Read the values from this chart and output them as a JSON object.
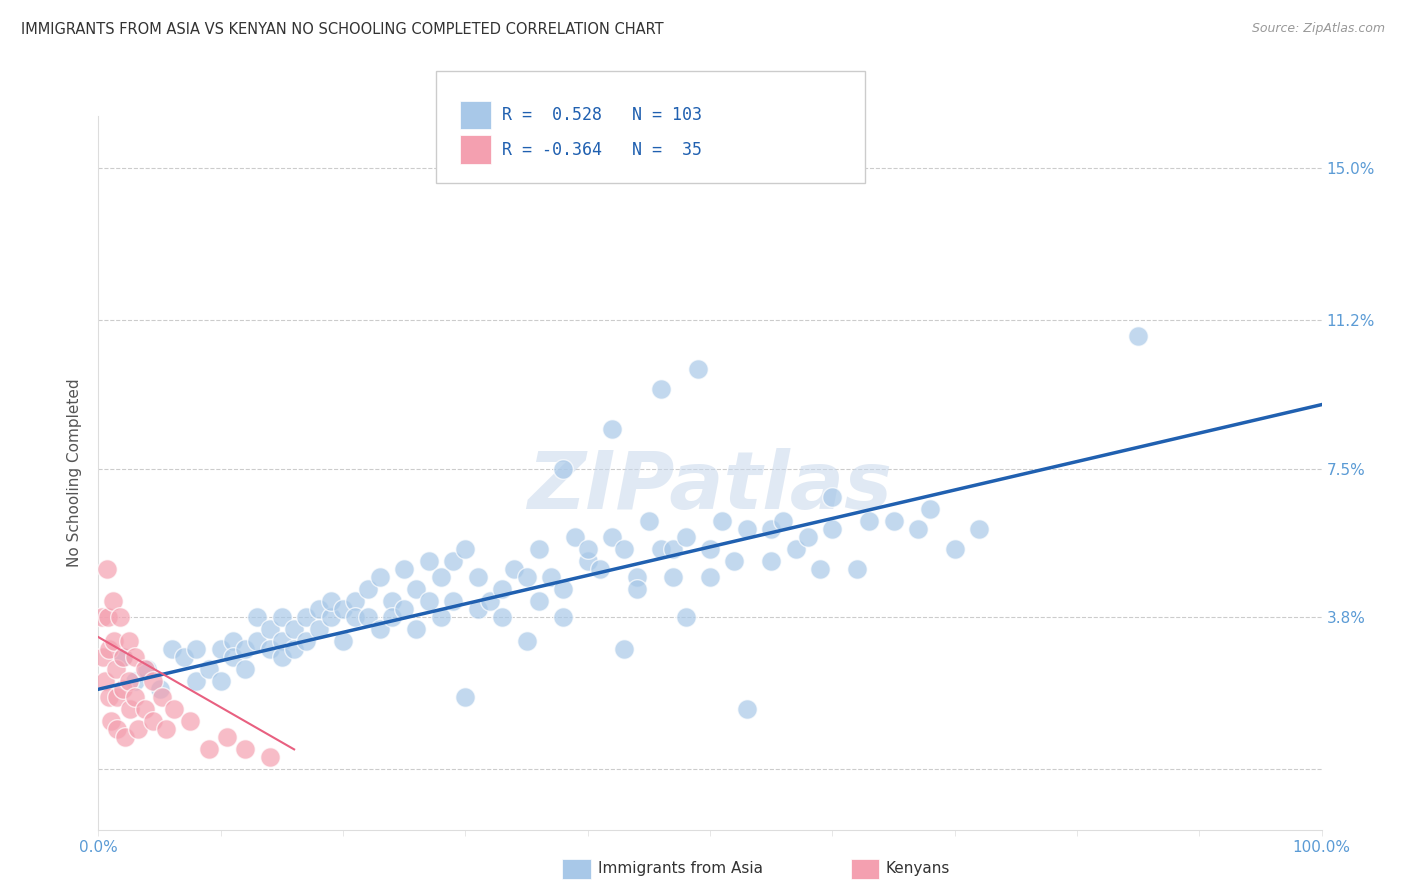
{
  "title": "IMMIGRANTS FROM ASIA VS KENYAN NO SCHOOLING COMPLETED CORRELATION CHART",
  "source": "Source: ZipAtlas.com",
  "ylabel": "No Schooling Completed",
  "xlim": [
    0.0,
    1.0
  ],
  "ylim": [
    -0.015,
    0.163
  ],
  "legend_blue_R": "0.528",
  "legend_blue_N": "103",
  "legend_pink_R": "-0.364",
  "legend_pink_N": "35",
  "blue_color": "#A8C8E8",
  "pink_color": "#F4A0B0",
  "line_blue_color": "#2060B0",
  "line_pink_color": "#E86080",
  "background_color": "#ffffff",
  "watermark": "ZIPatlas",
  "blue_scatter": [
    [
      0.02,
      0.028
    ],
    [
      0.03,
      0.022
    ],
    [
      0.04,
      0.025
    ],
    [
      0.05,
      0.02
    ],
    [
      0.06,
      0.03
    ],
    [
      0.07,
      0.028
    ],
    [
      0.08,
      0.03
    ],
    [
      0.08,
      0.022
    ],
    [
      0.09,
      0.025
    ],
    [
      0.1,
      0.03
    ],
    [
      0.1,
      0.022
    ],
    [
      0.11,
      0.032
    ],
    [
      0.11,
      0.028
    ],
    [
      0.12,
      0.03
    ],
    [
      0.12,
      0.025
    ],
    [
      0.13,
      0.032
    ],
    [
      0.13,
      0.038
    ],
    [
      0.14,
      0.03
    ],
    [
      0.14,
      0.035
    ],
    [
      0.15,
      0.038
    ],
    [
      0.15,
      0.032
    ],
    [
      0.15,
      0.028
    ],
    [
      0.16,
      0.035
    ],
    [
      0.16,
      0.03
    ],
    [
      0.17,
      0.038
    ],
    [
      0.17,
      0.032
    ],
    [
      0.18,
      0.04
    ],
    [
      0.18,
      0.035
    ],
    [
      0.19,
      0.038
    ],
    [
      0.19,
      0.042
    ],
    [
      0.2,
      0.04
    ],
    [
      0.2,
      0.032
    ],
    [
      0.21,
      0.042
    ],
    [
      0.21,
      0.038
    ],
    [
      0.22,
      0.045
    ],
    [
      0.22,
      0.038
    ],
    [
      0.23,
      0.048
    ],
    [
      0.23,
      0.035
    ],
    [
      0.24,
      0.042
    ],
    [
      0.24,
      0.038
    ],
    [
      0.25,
      0.05
    ],
    [
      0.25,
      0.04
    ],
    [
      0.26,
      0.045
    ],
    [
      0.26,
      0.035
    ],
    [
      0.27,
      0.052
    ],
    [
      0.27,
      0.042
    ],
    [
      0.28,
      0.048
    ],
    [
      0.28,
      0.038
    ],
    [
      0.29,
      0.052
    ],
    [
      0.29,
      0.042
    ],
    [
      0.3,
      0.055
    ],
    [
      0.3,
      0.018
    ],
    [
      0.31,
      0.048
    ],
    [
      0.31,
      0.04
    ],
    [
      0.32,
      0.042
    ],
    [
      0.33,
      0.045
    ],
    [
      0.33,
      0.038
    ],
    [
      0.34,
      0.05
    ],
    [
      0.35,
      0.048
    ],
    [
      0.35,
      0.032
    ],
    [
      0.36,
      0.055
    ],
    [
      0.36,
      0.042
    ],
    [
      0.37,
      0.048
    ],
    [
      0.38,
      0.045
    ],
    [
      0.38,
      0.038
    ],
    [
      0.39,
      0.058
    ],
    [
      0.4,
      0.052
    ],
    [
      0.4,
      0.055
    ],
    [
      0.41,
      0.05
    ],
    [
      0.42,
      0.058
    ],
    [
      0.43,
      0.03
    ],
    [
      0.43,
      0.055
    ],
    [
      0.44,
      0.048
    ],
    [
      0.44,
      0.045
    ],
    [
      0.45,
      0.062
    ],
    [
      0.46,
      0.055
    ],
    [
      0.47,
      0.055
    ],
    [
      0.47,
      0.048
    ],
    [
      0.48,
      0.058
    ],
    [
      0.48,
      0.038
    ],
    [
      0.49,
      0.1
    ],
    [
      0.5,
      0.055
    ],
    [
      0.5,
      0.048
    ],
    [
      0.51,
      0.062
    ],
    [
      0.52,
      0.052
    ],
    [
      0.53,
      0.06
    ],
    [
      0.53,
      0.015
    ],
    [
      0.55,
      0.06
    ],
    [
      0.55,
      0.052
    ],
    [
      0.56,
      0.062
    ],
    [
      0.57,
      0.055
    ],
    [
      0.58,
      0.058
    ],
    [
      0.59,
      0.05
    ],
    [
      0.6,
      0.068
    ],
    [
      0.6,
      0.06
    ],
    [
      0.62,
      0.05
    ],
    [
      0.63,
      0.062
    ],
    [
      0.65,
      0.062
    ],
    [
      0.67,
      0.06
    ],
    [
      0.68,
      0.065
    ],
    [
      0.7,
      0.055
    ],
    [
      0.72,
      0.06
    ],
    [
      0.85,
      0.108
    ],
    [
      0.38,
      0.075
    ],
    [
      0.42,
      0.085
    ],
    [
      0.46,
      0.095
    ]
  ],
  "pink_scatter": [
    [
      0.003,
      0.038
    ],
    [
      0.004,
      0.028
    ],
    [
      0.005,
      0.022
    ],
    [
      0.007,
      0.05
    ],
    [
      0.008,
      0.038
    ],
    [
      0.009,
      0.03
    ],
    [
      0.009,
      0.018
    ],
    [
      0.01,
      0.012
    ],
    [
      0.012,
      0.042
    ],
    [
      0.013,
      0.032
    ],
    [
      0.014,
      0.025
    ],
    [
      0.015,
      0.018
    ],
    [
      0.015,
      0.01
    ],
    [
      0.018,
      0.038
    ],
    [
      0.02,
      0.028
    ],
    [
      0.02,
      0.02
    ],
    [
      0.022,
      0.008
    ],
    [
      0.025,
      0.032
    ],
    [
      0.025,
      0.022
    ],
    [
      0.026,
      0.015
    ],
    [
      0.03,
      0.028
    ],
    [
      0.03,
      0.018
    ],
    [
      0.032,
      0.01
    ],
    [
      0.038,
      0.025
    ],
    [
      0.038,
      0.015
    ],
    [
      0.045,
      0.022
    ],
    [
      0.045,
      0.012
    ],
    [
      0.052,
      0.018
    ],
    [
      0.055,
      0.01
    ],
    [
      0.062,
      0.015
    ],
    [
      0.075,
      0.012
    ],
    [
      0.09,
      0.005
    ],
    [
      0.105,
      0.008
    ],
    [
      0.12,
      0.005
    ],
    [
      0.14,
      0.003
    ]
  ],
  "blue_line": [
    [
      0.0,
      0.02
    ],
    [
      1.0,
      0.091
    ]
  ],
  "pink_line": [
    [
      0.0,
      0.033
    ],
    [
      0.16,
      0.005
    ]
  ],
  "grid_yticks": [
    0.0,
    0.038,
    0.075,
    0.112,
    0.15
  ],
  "ytick_labels": [
    "",
    "3.8%",
    "7.5%",
    "11.2%",
    "15.0%"
  ],
  "grid_color": "#cccccc",
  "title_color": "#333333",
  "axis_label_color": "#5B9BD5",
  "watermark_color": "#C8D8EC",
  "watermark_alpha": 0.55
}
